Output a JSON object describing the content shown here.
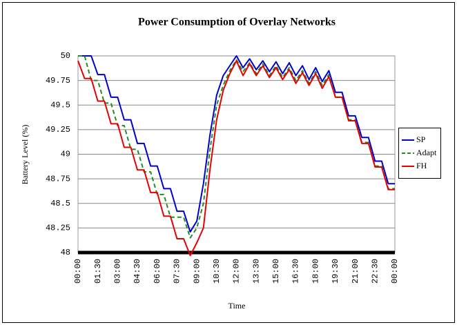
{
  "chart_data": {
    "type": "line",
    "title": "Power Consumption of Overlay Networks",
    "y_label": "Battery Level (%)",
    "x_label": "Time",
    "categories": [
      "00:00",
      null,
      null,
      "01:30",
      null,
      null,
      "03:00",
      null,
      null,
      "04:30",
      null,
      null,
      "06:00",
      null,
      null,
      "07:30",
      null,
      null,
      "09:00",
      null,
      null,
      "10:30",
      null,
      null,
      "12:00",
      null,
      null,
      "13:30",
      null,
      null,
      "15:00",
      null,
      null,
      "16:30",
      null,
      null,
      "18:00",
      null,
      null,
      "19:30",
      null,
      null,
      "21:00",
      null,
      null,
      "22:30",
      null,
      null,
      "00:00"
    ],
    "series": [
      {
        "name": "SP",
        "color": "#0000cc",
        "dash": false,
        "values": [
          50,
          50,
          50,
          49.81,
          49.81,
          49.58,
          49.58,
          49.35,
          49.35,
          49.11,
          49.11,
          48.88,
          48.88,
          48.65,
          48.65,
          48.42,
          48.42,
          48.21,
          48.32,
          48.7,
          49.2,
          49.6,
          49.8,
          49.9,
          50,
          49.88,
          49.97,
          49.86,
          49.95,
          49.84,
          49.94,
          49.82,
          49.93,
          49.8,
          49.9,
          49.76,
          49.88,
          49.74,
          49.85,
          49.63,
          49.63,
          49.39,
          49.39,
          49.17,
          49.17,
          48.93,
          48.93,
          48.7,
          48.7
        ]
      },
      {
        "name": "Adapt",
        "color": "#228b22",
        "dash": true,
        "values": [
          50,
          50,
          49.75,
          49.75,
          49.52,
          49.52,
          49.29,
          49.29,
          49.05,
          49.05,
          48.82,
          48.82,
          48.59,
          48.59,
          48.36,
          48.36,
          48.36,
          48.15,
          48.25,
          48.5,
          49.05,
          49.5,
          49.7,
          49.85,
          49.96,
          49.84,
          49.93,
          49.82,
          49.92,
          49.8,
          49.9,
          49.78,
          49.88,
          49.75,
          49.85,
          49.72,
          49.84,
          49.7,
          49.81,
          49.58,
          49.58,
          49.35,
          49.35,
          49.12,
          49.12,
          48.88,
          48.88,
          48.65,
          48.65
        ]
      },
      {
        "name": "FH",
        "color": "#e60000",
        "dash": false,
        "values": [
          49.95,
          49.77,
          49.77,
          49.54,
          49.54,
          49.31,
          49.31,
          49.07,
          49.07,
          48.84,
          48.84,
          48.61,
          48.61,
          48.37,
          48.37,
          48.14,
          48.14,
          47.97,
          48.1,
          48.25,
          48.85,
          49.35,
          49.65,
          49.82,
          49.95,
          49.8,
          49.92,
          49.8,
          49.9,
          49.78,
          49.88,
          49.76,
          49.86,
          49.72,
          49.83,
          49.7,
          49.82,
          49.67,
          49.79,
          49.58,
          49.58,
          49.34,
          49.34,
          49.11,
          49.11,
          48.87,
          48.87,
          48.64,
          48.64
        ]
      }
    ],
    "ylim": [
      48,
      50
    ],
    "yticks": [
      48,
      48.25,
      48.5,
      48.75,
      49,
      49.25,
      49.5,
      49.75,
      50
    ],
    "grid": true,
    "legend": "right"
  }
}
